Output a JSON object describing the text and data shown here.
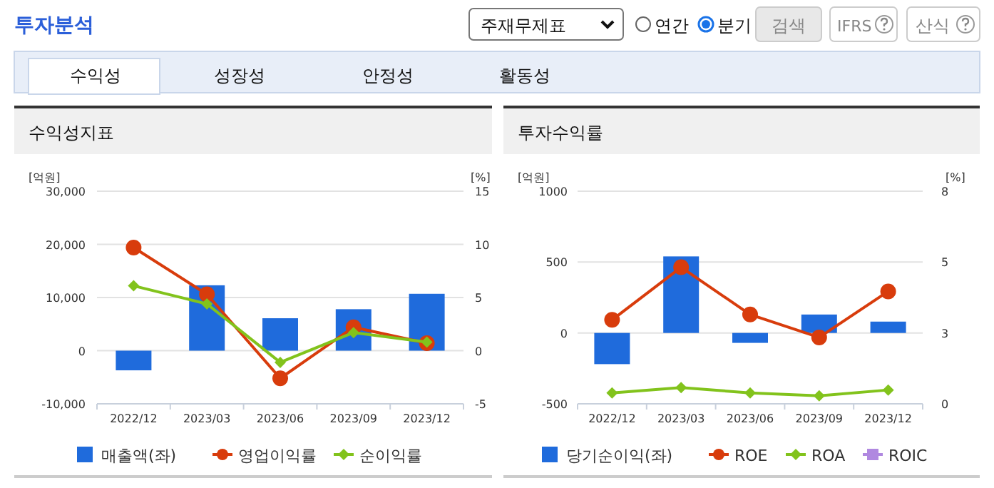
{
  "chart_data": [
    {
      "type": "other",
      "title": "투자분석",
      "annotations": [
        "주재무제표",
        "연간",
        "분기",
        "검색",
        "IFRS",
        "산식",
        "수익성",
        "성장성",
        "안정성",
        "활동성"
      ]
    },
    {
      "type": "bar",
      "title": "수익성지표",
      "ylabel": "[억원]",
      "y2label": "[%]",
      "categories": [
        "2022/12",
        "2023/03",
        "2023/06",
        "2023/09",
        "2023/12"
      ],
      "series": [
        {
          "name": "매출액(좌)",
          "type": "bar",
          "color": "#1f6bdc",
          "values": [
            -3700,
            12300,
            6100,
            7800,
            10700
          ]
        },
        {
          "name": "영업이익률",
          "type": "line",
          "axis": "y2",
          "marker": "circle",
          "color": "#d83c0c",
          "values": [
            9.7,
            5.3,
            -2.6,
            2.2,
            0.7
          ]
        },
        {
          "name": "순이익률",
          "type": "line",
          "axis": "y2",
          "marker": "diamond",
          "color": "#82c31c",
          "values": [
            6.1,
            4.4,
            -1.1,
            1.7,
            0.8
          ]
        }
      ],
      "ylim": [
        -10000,
        30000
      ],
      "yticks": [
        {
          "value": -10000,
          "label": "-10,000"
        },
        {
          "value": 0,
          "label": "0"
        },
        {
          "value": 10000,
          "label": "10,000"
        },
        {
          "value": 20000,
          "label": "20,000"
        },
        {
          "value": 30000,
          "label": "30,000"
        }
      ],
      "y2lim": [
        -5,
        15
      ],
      "y2ticks": [
        -5,
        0,
        5,
        10,
        15
      ],
      "grid": "y",
      "legend": "bottom"
    },
    {
      "type": "bar",
      "title": "투자수익률",
      "ylabel": "[억원]",
      "y2label": "[%]",
      "categories": [
        "2022/12",
        "2023/03",
        "2023/06",
        "2023/09",
        "2023/12"
      ],
      "series": [
        {
          "name": "당기순이익(좌)",
          "type": "bar",
          "color": "#1f6bdc",
          "values": [
            -220,
            540,
            -70,
            130,
            80
          ]
        },
        {
          "name": "ROE",
          "type": "line",
          "axis": "y2",
          "marker": "circle",
          "color": "#d83c0c",
          "values": [
            3.16,
            5.14,
            3.36,
            2.5,
            4.23
          ]
        },
        {
          "name": "ROA",
          "type": "line",
          "axis": "y2",
          "marker": "diamond",
          "color": "#82c31c",
          "values": [
            0.41,
            0.61,
            0.41,
            0.3,
            0.52
          ]
        },
        {
          "name": "ROIC",
          "type": "line",
          "axis": "y2",
          "marker": "square",
          "color": "#b088e0",
          "values": [
            null,
            null,
            null,
            null,
            null
          ]
        }
      ],
      "ylim": [
        -500,
        1000
      ],
      "yticks": [
        -500,
        0,
        500,
        1000
      ],
      "y2lim": [
        0,
        8
      ],
      "y2ticks": [
        0,
        {
          "value": 2.667,
          "label": "3"
        },
        {
          "value": 5.333,
          "label": "5"
        },
        8
      ],
      "grid": "y",
      "legend": "bottom"
    }
  ]
}
